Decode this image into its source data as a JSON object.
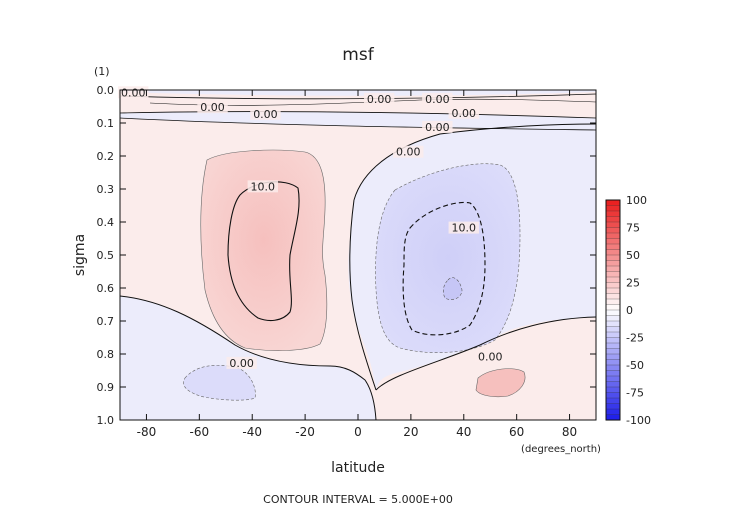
{
  "chart_data": {
    "type": "contour",
    "title": "msf",
    "units_label": "(1)",
    "xlabel": "latitude",
    "x_units": "(degrees_north)",
    "ylabel": "sigma",
    "xlim": [
      -90,
      90
    ],
    "ylim": [
      0.0,
      1.0
    ],
    "y_inverted": true,
    "x_ticks": [
      -80,
      -60,
      -40,
      -20,
      0,
      20,
      40,
      60,
      80
    ],
    "y_ticks": [
      "0.0",
      "0.1",
      "0.2",
      "0.3",
      "0.4",
      "0.5",
      "0.6",
      "0.7",
      "0.8",
      "0.9",
      "1.0"
    ],
    "footer": "CONTOUR INTERVAL = 5.000E+00",
    "colorbar": {
      "ticks": [
        "100",
        "75",
        "50",
        "25",
        "0",
        "-25",
        "-50",
        "-75",
        "-100"
      ],
      "top_color": "#e81b1b",
      "bottom_color": "#1b1be8"
    },
    "contour_labels": [
      {
        "text": "0.00",
        "lat": -85,
        "sigma": 0.01
      },
      {
        "text": "0.00",
        "lat": -55,
        "sigma": 0.055
      },
      {
        "text": "0.00",
        "lat": -35,
        "sigma": 0.075
      },
      {
        "text": "0.00",
        "lat": 8,
        "sigma": 0.03
      },
      {
        "text": "0.00",
        "lat": 30,
        "sigma": 0.03
      },
      {
        "text": "0.00",
        "lat": 40,
        "sigma": 0.072
      },
      {
        "text": "0.00",
        "lat": 30,
        "sigma": 0.115
      },
      {
        "text": "0.00",
        "lat": 19,
        "sigma": 0.19
      },
      {
        "text": "10.0",
        "lat": -36,
        "sigma": 0.295
      },
      {
        "text": "10.0",
        "lat": 40,
        "sigma": 0.42
      },
      {
        "text": "0.00",
        "lat": -44,
        "sigma": 0.83
      },
      {
        "text": "0.00",
        "lat": 50,
        "sigma": 0.81
      }
    ]
  }
}
